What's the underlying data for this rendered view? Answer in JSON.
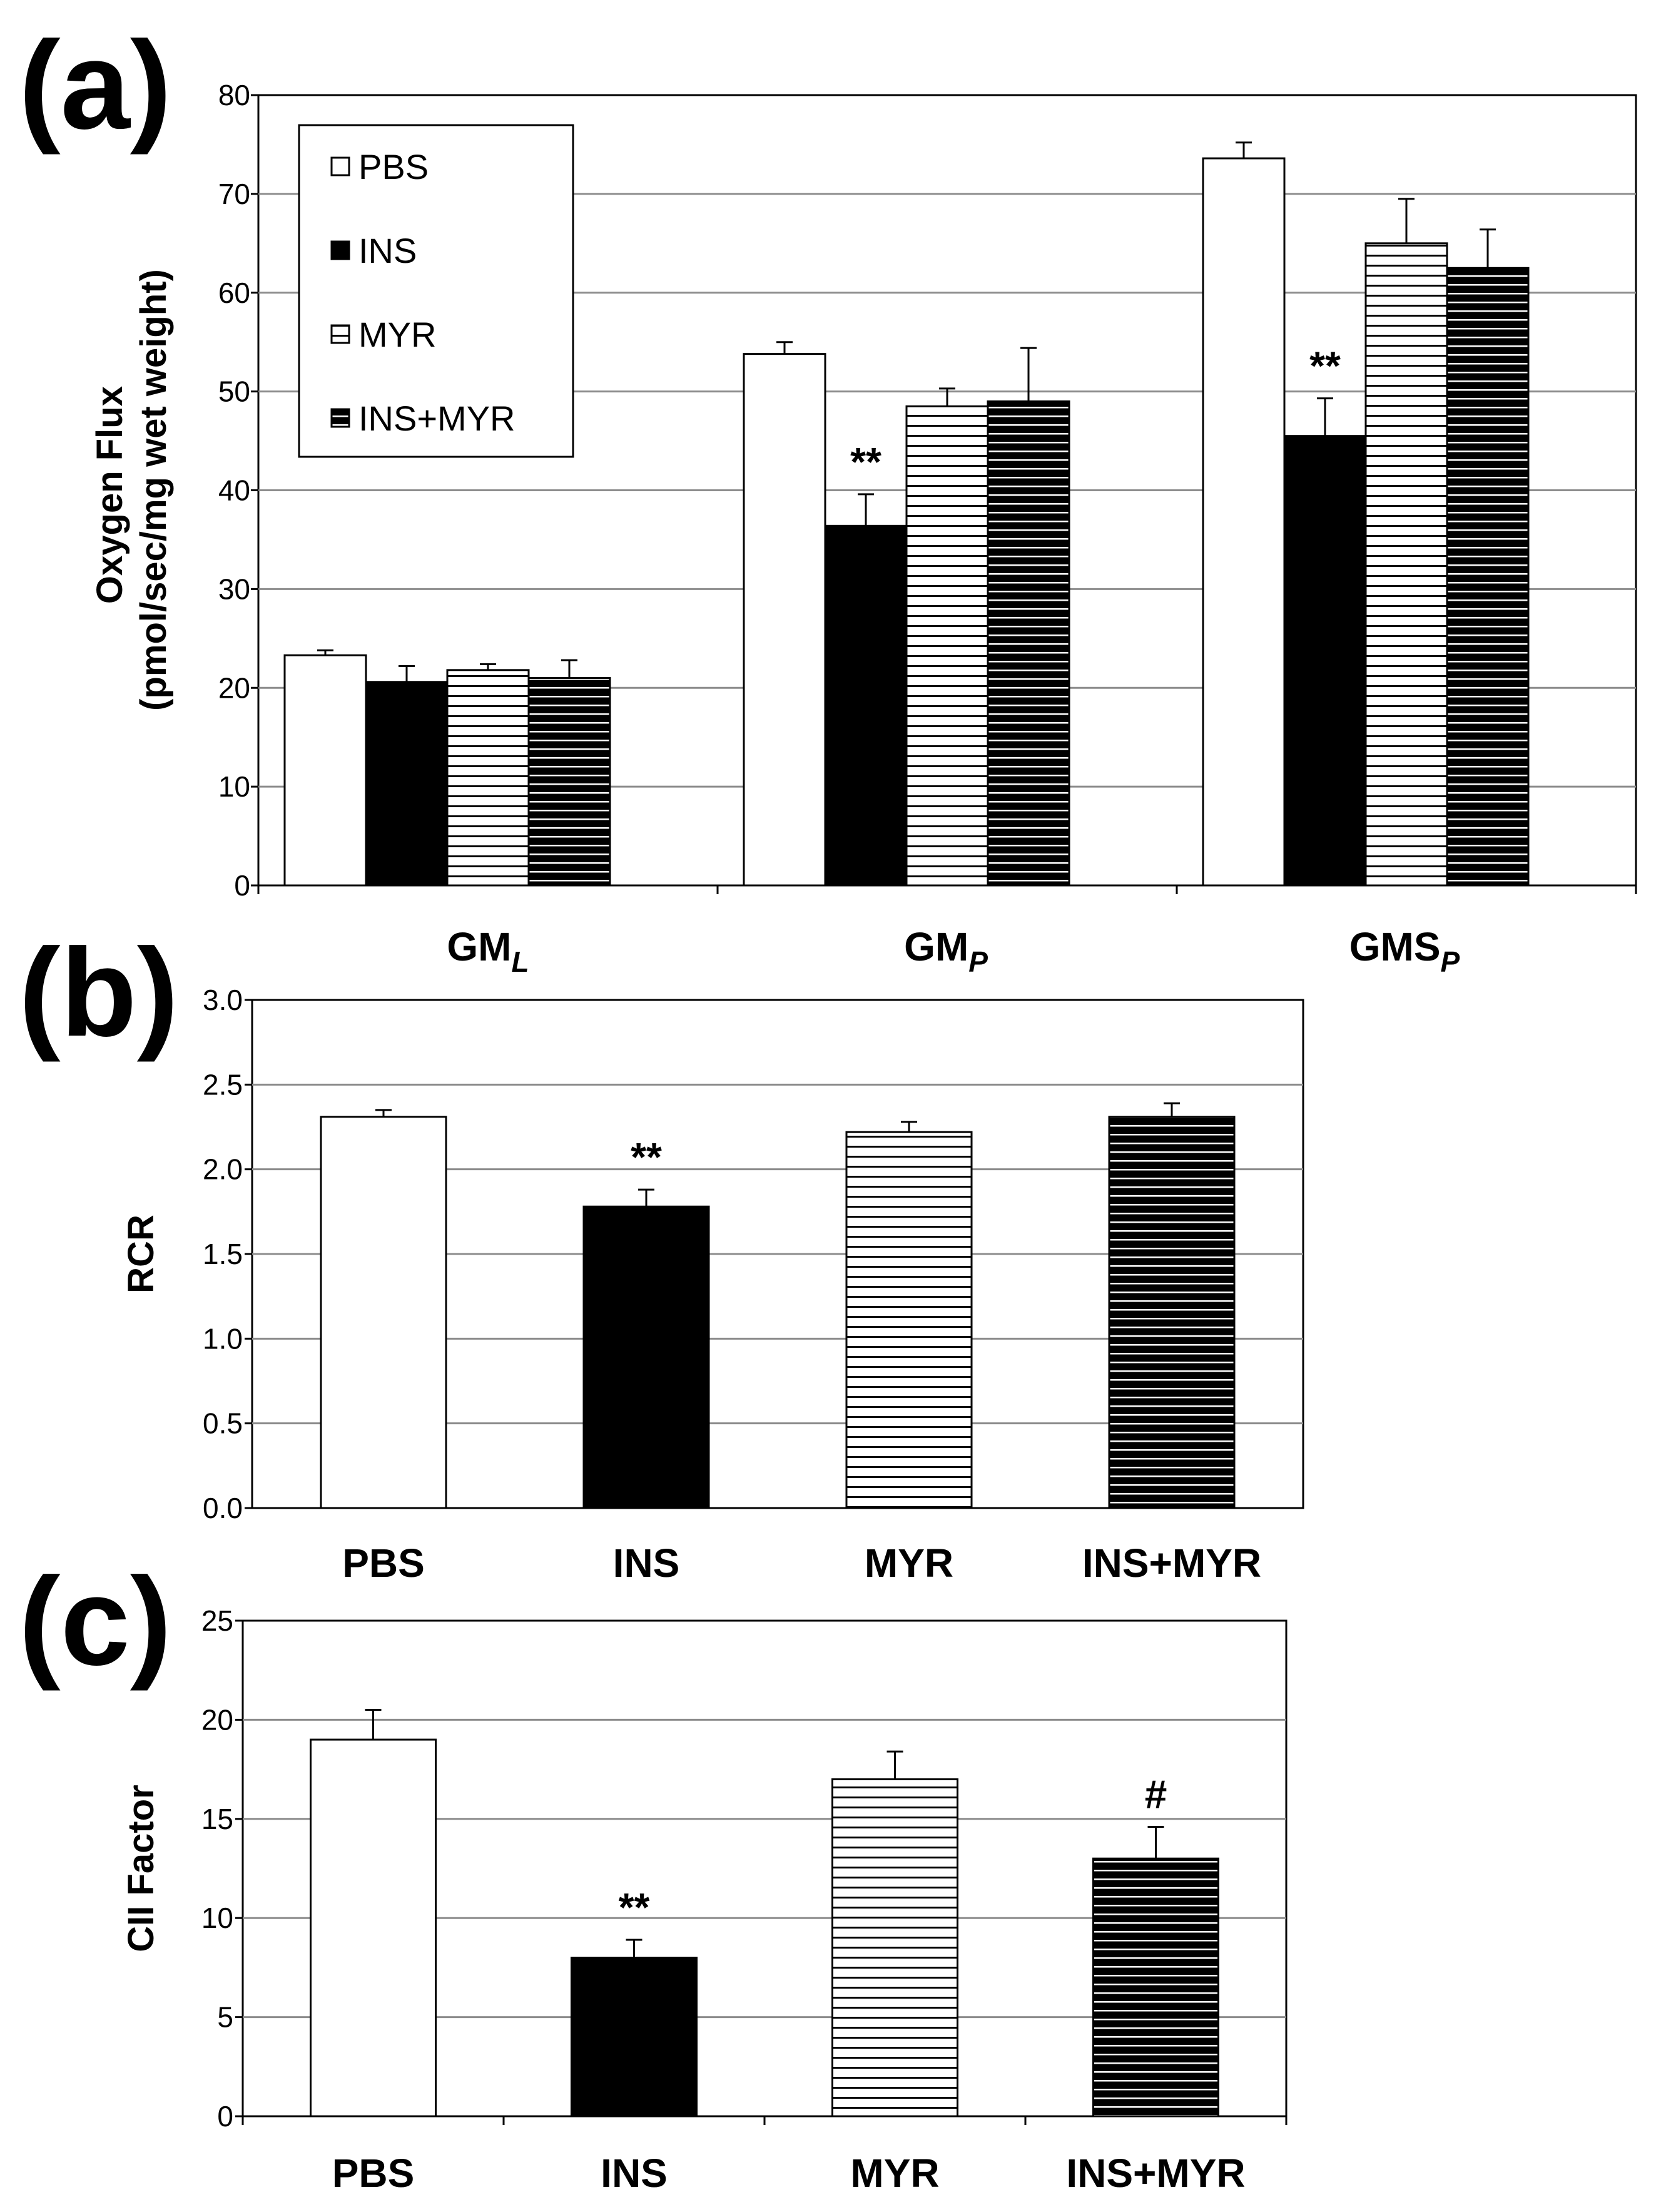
{
  "styles": {
    "PBS": "white",
    "INS": "black",
    "MYR": "stripe-white",
    "INS+MYR": "stripe-black"
  },
  "chart_data": [
    {
      "type": "bar",
      "panel": "(a)",
      "ylabel_lines": [
        "Oxygen Flux",
        "(pmol/sec/mg wet weight)"
      ],
      "ylim": [
        0,
        80
      ],
      "yticks": [
        "0",
        "10",
        "20",
        "30",
        "40",
        "50",
        "60",
        "70",
        "80"
      ],
      "grid": true,
      "legend_position": "top-left",
      "categories": [
        {
          "base": "GM",
          "sub": "L"
        },
        {
          "base": "GM",
          "sub": "P"
        },
        {
          "base": "GMS",
          "sub": "P"
        }
      ],
      "series": [
        {
          "name": "PBS",
          "values": [
            23.3,
            53.8,
            73.6
          ],
          "errors": [
            0.5,
            1.2,
            1.6
          ],
          "markers": [
            "",
            "",
            ""
          ]
        },
        {
          "name": "INS",
          "values": [
            20.6,
            36.4,
            45.5
          ],
          "errors": [
            1.6,
            3.2,
            3.8
          ],
          "markers": [
            "",
            "**",
            "**"
          ]
        },
        {
          "name": "MYR",
          "values": [
            21.8,
            48.5,
            65.0
          ],
          "errors": [
            0.6,
            1.8,
            4.5
          ],
          "markers": [
            "",
            "",
            ""
          ]
        },
        {
          "name": "INS+MYR",
          "values": [
            21.0,
            49.0,
            62.5
          ],
          "errors": [
            1.8,
            5.4,
            3.9
          ],
          "markers": [
            "",
            "",
            ""
          ]
        }
      ]
    },
    {
      "type": "bar",
      "panel": "(b)",
      "ylabel_lines": [
        "RCR"
      ],
      "ylim": [
        0,
        3
      ],
      "yticks": [
        "0.0",
        "0.5",
        "1.0",
        "1.5",
        "2.0",
        "2.5",
        "3.0"
      ],
      "grid": true,
      "categories": [
        "PBS",
        "INS",
        "MYR",
        "INS+MYR"
      ],
      "values": [
        2.31,
        1.78,
        2.22,
        2.31
      ],
      "errors": [
        0.04,
        0.1,
        0.06,
        0.08
      ],
      "markers": [
        "",
        "**",
        "",
        ""
      ]
    },
    {
      "type": "bar",
      "panel": "(c)",
      "ylabel_lines": [
        "CII Factor"
      ],
      "ylim": [
        0,
        25
      ],
      "yticks": [
        "0",
        "5",
        "10",
        "15",
        "20",
        "25"
      ],
      "grid": true,
      "categories": [
        "PBS",
        "INS",
        "MYR",
        "INS+MYR"
      ],
      "values": [
        19.0,
        8.0,
        17.0,
        13.0
      ],
      "errors": [
        1.5,
        0.9,
        1.4,
        1.6
      ],
      "markers": [
        "",
        "**",
        "",
        "#"
      ]
    }
  ]
}
